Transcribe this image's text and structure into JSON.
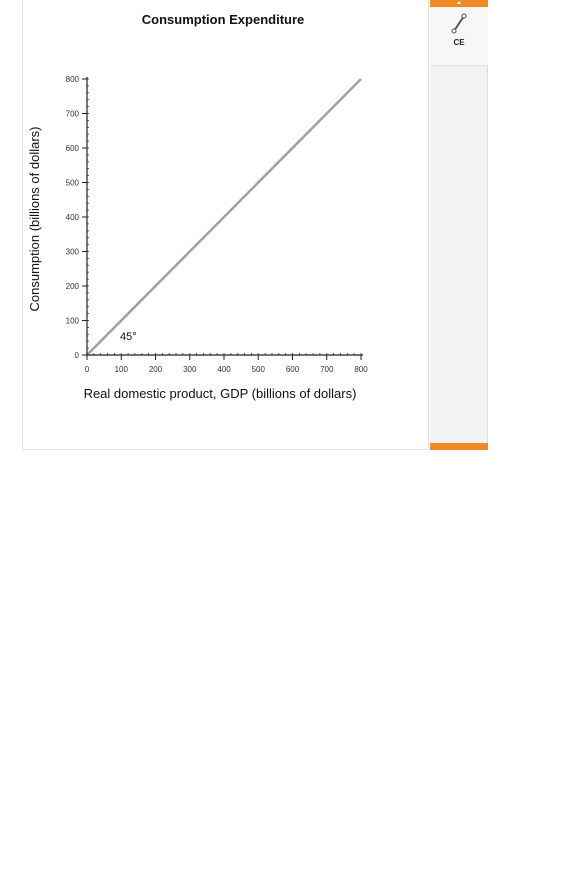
{
  "chart_data": {
    "type": "line",
    "title": "Consumption Expenditure",
    "xlabel": "Real domestic product, GDP (billions of dollars)",
    "ylabel": "Consumption (billions of dollars)",
    "xlim": [
      0,
      800
    ],
    "ylim": [
      0,
      800
    ],
    "xticks": [
      "0",
      "100",
      "200",
      "300",
      "400",
      "500",
      "600",
      "700",
      "800"
    ],
    "yticks": [
      "0",
      "100",
      "200",
      "300",
      "400",
      "500",
      "600",
      "700",
      "800"
    ],
    "series": [
      {
        "x": [
          0,
          800
        ],
        "y": [
          0,
          800
        ],
        "color": "#a0a0a0"
      }
    ],
    "annotations": [
      {
        "text": "45°"
      }
    ]
  },
  "toolbar": {
    "tools": [
      {
        "label": "CE",
        "icon": "line-segment-icon"
      }
    ],
    "accent_color": "#ef8a25"
  }
}
